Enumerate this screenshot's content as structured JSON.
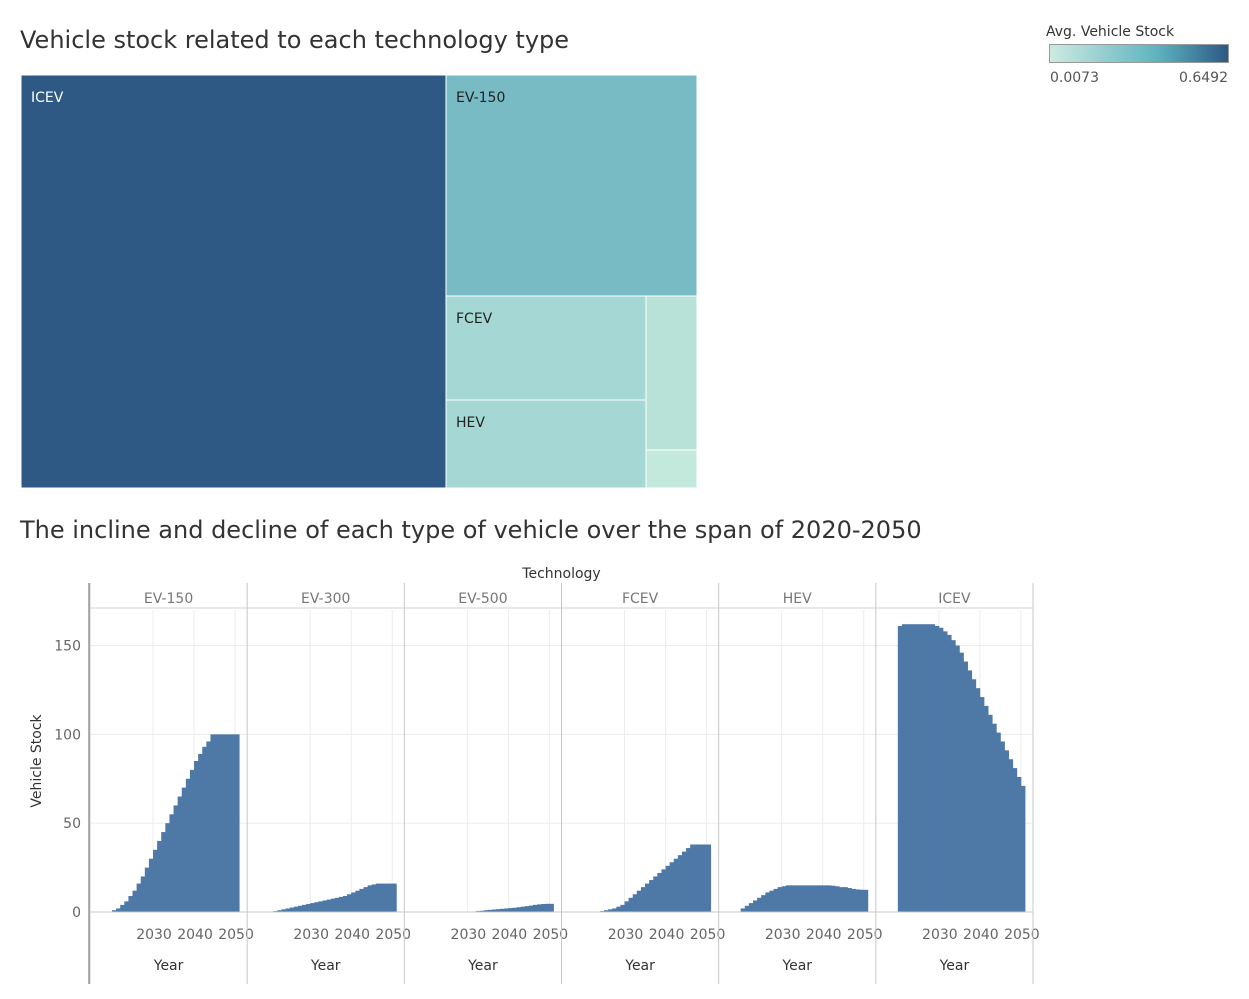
{
  "treemap": {
    "title": "Vehicle stock related to each technology type",
    "legend": {
      "title": "Avg. Vehicle Stock",
      "min_label": "0.0073",
      "max_label": "0.6492",
      "color_low": "#cdeae1",
      "color_mid": "#5fb3c0",
      "color_high": "#2c5985"
    },
    "cells": [
      {
        "name": "ICEV",
        "label": "ICEV",
        "value": 0.6492,
        "color": "#2e5984",
        "label_color": "#ffffff"
      },
      {
        "name": "EV-150",
        "label": "EV-150",
        "value": 0.2745,
        "color": "#78bbc5",
        "label_color": "#222222"
      },
      {
        "name": "FCEV",
        "label": "FCEV",
        "value": 0.0933,
        "color": "#a5d8d4",
        "label_color": "#222222"
      },
      {
        "name": "HEV",
        "label": "HEV",
        "value": 0.0918,
        "color": "#a5d8d4",
        "label_color": "#222222"
      },
      {
        "name": "EV-300",
        "label": "",
        "value": 0.0464,
        "color": "#b8e2d8",
        "label_color": "#222222"
      },
      {
        "name": "EV-500",
        "label": "",
        "value": 0.0073,
        "color": "#c3e8dc",
        "label_color": "#222222"
      }
    ]
  },
  "bars": {
    "title": "The incline and decline of each type of vehicle over the span of 2020-2050",
    "header": "Technology",
    "ylabel": "Vehicle Stock",
    "xlabel": "Year",
    "bar_color": "#4e79a7"
  },
  "chart_data": {
    "type": "bar",
    "title": "The incline and decline of each type of vehicle over the span of 2020-2050",
    "facet_label": "Technology",
    "xlabel": "Year",
    "ylabel": "Vehicle Stock",
    "ylim": [
      0,
      170
    ],
    "yticks": [
      0,
      50,
      100,
      150
    ],
    "xticks": [
      2030,
      2040,
      2050
    ],
    "x": [
      2020,
      2021,
      2022,
      2023,
      2024,
      2025,
      2026,
      2027,
      2028,
      2029,
      2030,
      2031,
      2032,
      2033,
      2034,
      2035,
      2036,
      2037,
      2038,
      2039,
      2040,
      2041,
      2042,
      2043,
      2044,
      2045,
      2046,
      2047,
      2048,
      2049,
      2050
    ],
    "grid": true,
    "series": [
      {
        "name": "EV-150",
        "values": [
          1,
          2,
          4,
          6,
          9,
          12,
          16,
          20,
          25,
          30,
          35,
          40,
          45,
          50,
          55,
          60,
          65,
          70,
          75,
          80,
          85,
          89,
          93,
          96,
          100,
          100,
          100,
          100,
          100,
          100,
          100
        ]
      },
      {
        "name": "EV-300",
        "values": [
          0.2,
          0.5,
          1,
          1.5,
          2,
          2.5,
          3,
          3.5,
          4,
          4.5,
          5,
          5.5,
          6,
          6.5,
          7,
          7.5,
          8,
          8.5,
          9,
          10,
          11,
          12,
          13,
          14,
          15,
          15.5,
          16,
          16,
          16,
          16,
          16
        ]
      },
      {
        "name": "EV-500",
        "values": [
          0,
          0,
          0,
          0,
          0,
          0,
          0,
          0,
          0,
          0,
          0,
          0,
          0.5,
          0.7,
          1,
          1.2,
          1.4,
          1.6,
          1.8,
          2,
          2.2,
          2.4,
          2.7,
          3,
          3.3,
          3.6,
          4,
          4.3,
          4.5,
          4.6,
          4.6
        ]
      },
      {
        "name": "FCEV",
        "values": [
          0,
          0,
          0,
          0,
          0.5,
          1,
          1.5,
          2,
          3,
          4,
          6,
          8,
          10,
          12,
          14,
          16,
          18,
          20,
          22,
          24,
          26,
          28,
          30,
          32,
          34,
          36,
          38,
          38,
          38,
          38,
          38
        ]
      },
      {
        "name": "HEV",
        "values": [
          2,
          3.5,
          5,
          6.5,
          8,
          9.5,
          11,
          12,
          13,
          14,
          14.5,
          15,
          15,
          15,
          15,
          15,
          15,
          15,
          15,
          15,
          15,
          15,
          14.8,
          14.5,
          14,
          14,
          13.5,
          13,
          12.7,
          12.5,
          12.5
        ]
      },
      {
        "name": "ICEV",
        "values": [
          161,
          162,
          162,
          162,
          162,
          162,
          162,
          162,
          162,
          161,
          160,
          158,
          156,
          153,
          150,
          146,
          141,
          136,
          131,
          126,
          121,
          116,
          111,
          106,
          101,
          96,
          91,
          86,
          81,
          76,
          71
        ]
      }
    ]
  }
}
